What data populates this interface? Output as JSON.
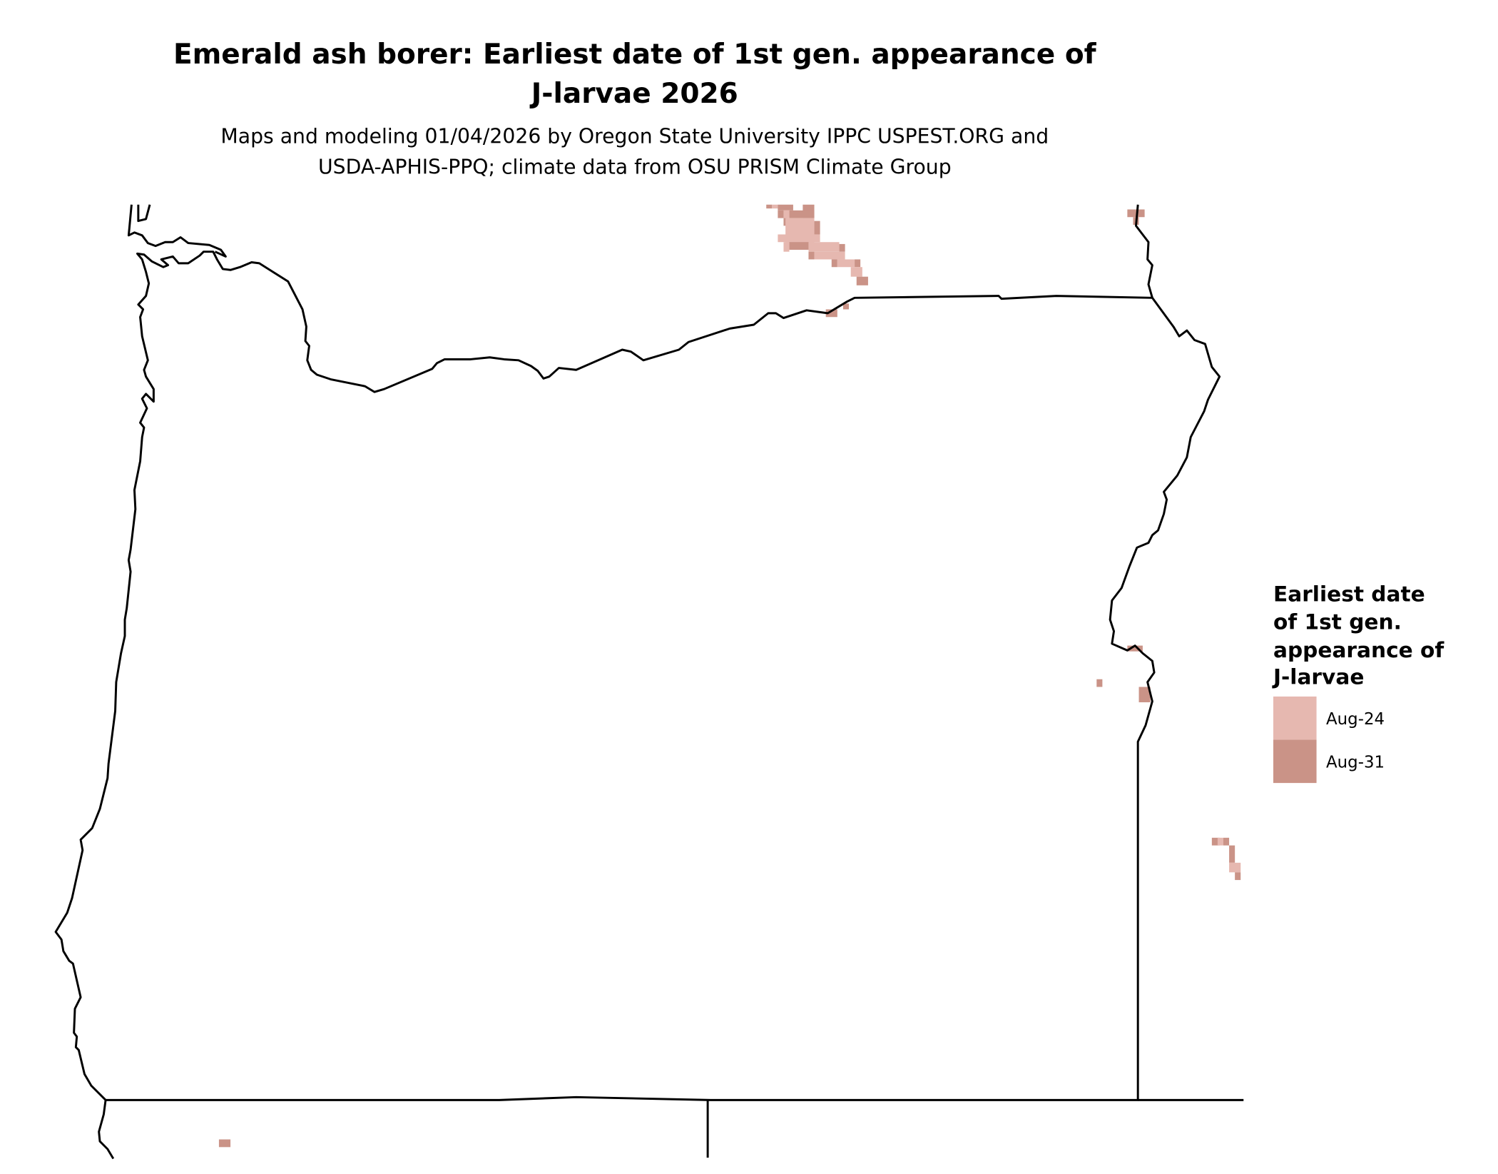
{
  "title": {
    "line1": "Emerald ash borer: Earliest date of 1st gen. appearance of",
    "line2": "J-larvae 2026"
  },
  "subtitle": {
    "line1": "Maps and modeling 01/04/2026 by Oregon State University IPPC USPEST.ORG and",
    "line2": "USDA-APHIS-PPQ; climate data from OSU PRISM Climate Group"
  },
  "legend": {
    "title_lines": [
      "Earliest date",
      "of 1st gen.",
      "appearance of",
      "J-larvae"
    ],
    "items": [
      {
        "label": "Aug-24",
        "color": "#e6b8b0"
      },
      {
        "label": "Aug-31",
        "color": "#ca9387"
      }
    ]
  },
  "map": {
    "region": "Oregon",
    "outline_color": "#000000",
    "background": "#ffffff"
  }
}
